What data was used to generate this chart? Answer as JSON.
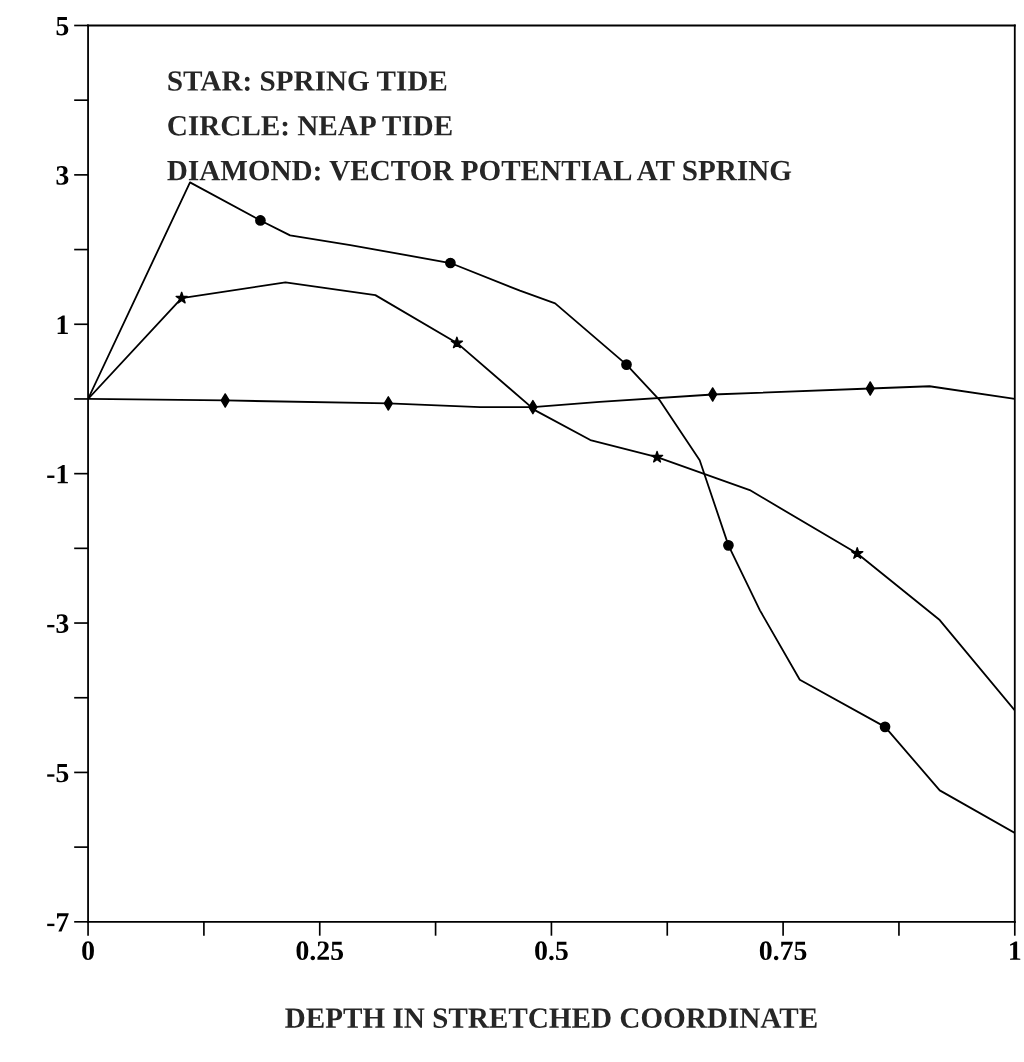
{
  "chart_data": {
    "type": "line",
    "xlabel": "DEPTH IN STRETCHED COORDINATE",
    "annotations": [
      "STAR: SPRING TIDE",
      "CIRCLE: NEAP TIDE",
      "DIAMOND: VECTOR POTENTIAL AT SPRING"
    ],
    "xlim": [
      0,
      1
    ],
    "ylim": [
      -7,
      5
    ],
    "xticks": [
      0,
      {
        "value": 0.125,
        "label": null
      },
      0.25,
      {
        "value": 0.375,
        "label": null
      },
      0.5,
      {
        "value": 0.625,
        "label": null
      },
      0.75,
      {
        "value": 0.875,
        "label": null
      },
      1
    ],
    "yticks": [
      -7,
      {
        "value": -6,
        "label": null
      },
      -5,
      {
        "value": -4,
        "label": null
      },
      -3,
      {
        "value": -2,
        "label": null
      },
      -1,
      {
        "value": 0,
        "label": null
      },
      1,
      {
        "value": 2,
        "label": null
      },
      3,
      {
        "value": 4,
        "label": null
      },
      5
    ],
    "grid": false,
    "legend": false,
    "series": [
      {
        "type": "line",
        "marker": "none",
        "color": "#000000",
        "x": [
          0,
          0.11,
          0.186,
          0.218,
          0.283,
          0.391,
          0.466,
          0.504,
          0.581,
          0.617,
          0.66,
          0.691,
          0.725,
          0.768,
          0.86,
          0.919,
          1
        ],
        "values": [
          0,
          2.9,
          2.39,
          2.19,
          2.06,
          1.82,
          1.45,
          1.28,
          0.46,
          -0.02,
          -0.82,
          -1.96,
          -2.83,
          -3.76,
          -4.39,
          -5.24,
          -5.81
        ]
      },
      {
        "type": "line",
        "marker": "none",
        "color": "#000000",
        "x": [
          0,
          0.101,
          0.213,
          0.31,
          0.398,
          0.482,
          0.542,
          0.614,
          0.714,
          0.83,
          0.919,
          1
        ],
        "values": [
          0,
          1.35,
          1.56,
          1.39,
          0.75,
          -0.15,
          -0.55,
          -0.78,
          -1.22,
          -2.07,
          -2.96,
          -4.17
        ]
      },
      {
        "type": "line",
        "marker": "none",
        "color": "#000000",
        "x": [
          0,
          0.148,
          0.324,
          0.423,
          0.48,
          0.552,
          0.674,
          0.844,
          0.908,
          1
        ],
        "values": [
          0,
          -0.02,
          -0.06,
          -0.11,
          -0.11,
          -0.04,
          0.06,
          0.14,
          0.17,
          0
        ]
      },
      {
        "type": "scatter",
        "marker": "circle",
        "color": "#000000",
        "x": [
          0.186,
          0.391,
          0.581,
          0.691,
          0.86
        ],
        "values": [
          2.39,
          1.82,
          0.46,
          -1.96,
          -4.39
        ]
      },
      {
        "type": "scatter",
        "marker": "star",
        "color": "#000000",
        "x": [
          0.101,
          0.398,
          0.614,
          0.83
        ],
        "values": [
          1.35,
          0.75,
          -0.78,
          -2.07
        ]
      },
      {
        "type": "scatter",
        "marker": "diamond",
        "color": "#000000",
        "x": [
          0.148,
          0.324,
          0.48,
          0.674,
          0.844
        ],
        "values": [
          -0.02,
          -0.06,
          -0.11,
          0.06,
          0.14
        ]
      }
    ]
  }
}
